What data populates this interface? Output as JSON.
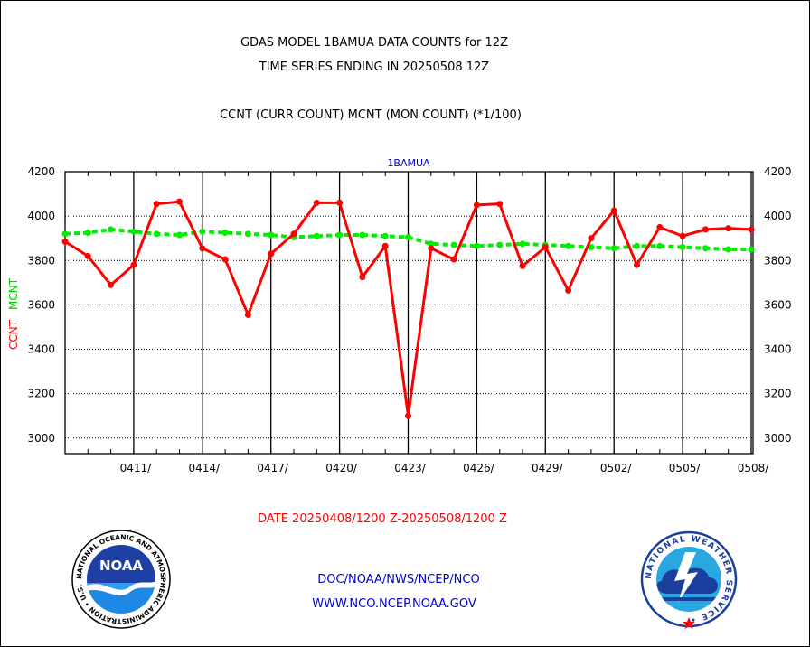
{
  "header": {
    "title_line1": "GDAS MODEL 1BAMUA DATA COUNTS for 12Z",
    "title_line2": "TIME SERIES ENDING IN 20250508 12Z",
    "subtitle": "CCNT (CURR COUNT) MCNT (MON COUNT) (*1/100)"
  },
  "footer": {
    "date_range": "DATE 20250408/1200 Z-20250508/1200 Z",
    "org_line": "DOC/NOAA/NWS/NCEP/NCO",
    "url_line": "WWW.NCO.NCEP.NOAA.GOV",
    "noaa_logo_text": "NOAA",
    "noaa_seal_text": "NATIONAL OCEANIC AND ATMOSPHERIC ADMINISTRATION • U.S. DEPARTMENT OF COMMERCE •",
    "nws_seal_text": "NATIONAL WEATHER SERVICE •"
  },
  "colors": {
    "ccnt": "#ff0000",
    "mcnt": "#00ee00",
    "title": "#000000",
    "panel_label": "#0000cc",
    "footer_link": "#0000cc",
    "date_text": "#ff0000"
  },
  "chart_data": {
    "type": "line",
    "panel_label": "1BAMUA",
    "ylabel_ccnt": "CCNT",
    "ylabel_mcnt": "MCNT",
    "ylim": [
      2930,
      4200
    ],
    "yticks": [
      3000,
      3200,
      3400,
      3600,
      3800,
      4000,
      4200
    ],
    "x": [
      "0408",
      "0409",
      "0410",
      "0411",
      "0412",
      "0413",
      "0414",
      "0415",
      "0416",
      "0417",
      "0418",
      "0419",
      "0420",
      "0421",
      "0422",
      "0423",
      "0424",
      "0425",
      "0426",
      "0427",
      "0428",
      "0429",
      "0430",
      "0501",
      "0502",
      "0503",
      "0504",
      "0505",
      "0506",
      "0507",
      "0508"
    ],
    "xtick_labels": [
      "0411/",
      "0414/",
      "0417/",
      "0420/",
      "0423/",
      "0426/",
      "0429/",
      "0502/",
      "0505/",
      "0508/"
    ],
    "xtick_index": [
      3,
      6,
      9,
      12,
      15,
      18,
      21,
      24,
      27,
      30
    ],
    "grid": true,
    "series": [
      {
        "name": "CCNT",
        "values": [
          3885,
          3820,
          3690,
          3780,
          4055,
          4065,
          3855,
          3805,
          3555,
          3830,
          3920,
          4060,
          4060,
          3725,
          3865,
          3100,
          3855,
          3805,
          4050,
          4055,
          3775,
          3860,
          3665,
          3900,
          4025,
          3780,
          3950,
          3910,
          3940,
          3945,
          3940
        ]
      },
      {
        "name": "MCNT",
        "values": [
          3920,
          3925,
          3940,
          3930,
          3920,
          3915,
          3930,
          3925,
          3920,
          3915,
          3905,
          3910,
          3915,
          3915,
          3910,
          3905,
          3875,
          3870,
          3865,
          3870,
          3875,
          3870,
          3865,
          3860,
          3855,
          3865,
          3865,
          3860,
          3855,
          3850,
          3850
        ]
      }
    ]
  }
}
